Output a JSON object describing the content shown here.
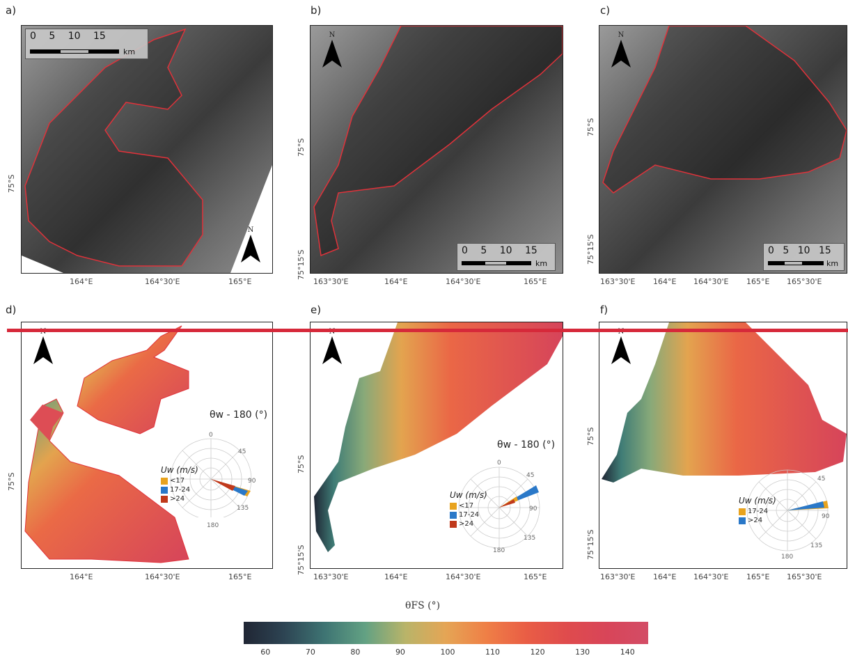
{
  "panels": [
    {
      "id": "a",
      "label": "a)",
      "x_ticks": [
        "164°E",
        "164°30'E",
        "165°E"
      ],
      "y_ticks": [
        "75°S"
      ]
    },
    {
      "id": "b",
      "label": "b)",
      "x_ticks": [
        "163°30'E",
        "164°E",
        "164°30'E",
        "165°E"
      ],
      "y_ticks": [
        "75°S",
        "75°15'S"
      ]
    },
    {
      "id": "c",
      "label": "c)",
      "x_ticks": [
        "163°30'E",
        "164°E",
        "164°30'E",
        "165°E",
        "165°30'E"
      ],
      "y_ticks": [
        "75°S",
        "75°15'S"
      ]
    },
    {
      "id": "d",
      "label": "d)",
      "x_ticks": [
        "164°E",
        "164°30'E",
        "165°E"
      ],
      "y_ticks": [
        "75°S"
      ]
    },
    {
      "id": "e",
      "label": "e)",
      "x_ticks": [
        "163°30'E",
        "164°E",
        "164°30'E",
        "165°E"
      ],
      "y_ticks": [
        "75°S",
        "75°15'S"
      ]
    },
    {
      "id": "f",
      "label": "f)",
      "x_ticks": [
        "163°30'E",
        "164°E",
        "164°30'E",
        "165°E",
        "165°30'E"
      ],
      "y_ticks": [
        "75°S",
        "75°15'S"
      ]
    }
  ],
  "scalebar": {
    "numbers": "0 5 10 15",
    "unit": "km"
  },
  "north_label": "N",
  "rose": {
    "title": "θw - 180 (°)",
    "angle_labels_d": [
      "0",
      "45",
      "90",
      "135",
      "180"
    ],
    "angle_labels_f": [
      "45",
      "90",
      "135",
      "180"
    ],
    "legend_title": "Uw (m/s)",
    "classes_d": [
      "<17",
      "17-24",
      ">24"
    ],
    "classes_e": [
      "<17",
      "17-24",
      ">24"
    ],
    "classes_f": [
      "17-24",
      ">24"
    ]
  },
  "colors": {
    "lt17": "#e8a31e",
    "c17_24": "#2a78c8",
    "gt24": "#c0391b",
    "boundary": "#e0323a"
  },
  "colorbar": {
    "title": "θFS (°)",
    "ticks": [
      "60",
      "70",
      "80",
      "90",
      "100",
      "110",
      "120",
      "130",
      "140"
    ],
    "range": [
      55,
      145
    ]
  }
}
